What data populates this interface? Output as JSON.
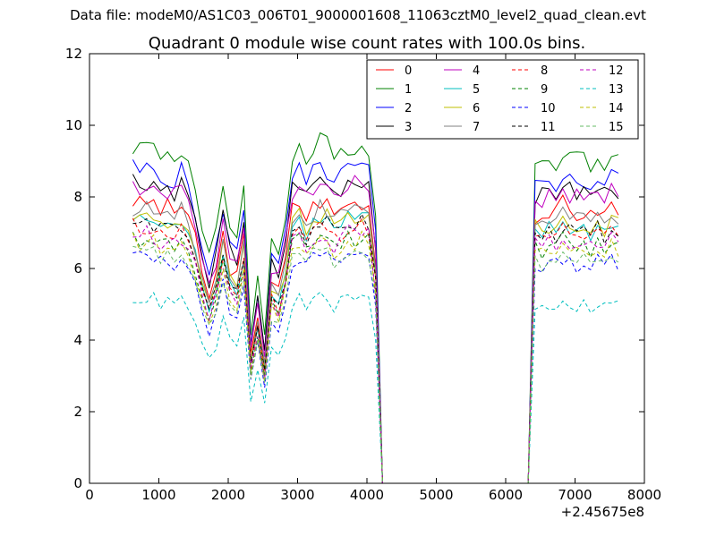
{
  "figure": {
    "suptitle": "Data file: modeM0/AS1C03_006T01_9000001608_11063cztM0_level2_quad_clean.evt"
  },
  "chart_data": {
    "type": "line",
    "title": "Quadrant 0 module wise count rates with 100.0s bins.",
    "xlabel": "",
    "ylabel": "",
    "xlim": [
      0,
      8000
    ],
    "ylim": [
      0,
      12
    ],
    "xticks": [
      0,
      1000,
      2000,
      3000,
      4000,
      5000,
      6000,
      7000,
      8000
    ],
    "yticks": [
      0,
      2,
      4,
      6,
      8,
      10,
      12
    ],
    "x_offset_label": "+2.45675e8",
    "legend_position": "top-right",
    "legend_columns": 4,
    "x": [
      625,
      725,
      825,
      925,
      1025,
      1125,
      1225,
      1325,
      1425,
      1525,
      1625,
      1725,
      1825,
      1925,
      2025,
      2125,
      2225,
      2325,
      2425,
      2525,
      2625,
      2725,
      2825,
      2925,
      3025,
      3125,
      3225,
      3325,
      3425,
      3525,
      3625,
      3725,
      3825,
      3925,
      4025,
      4125,
      4225,
      4325,
      4425,
      4525,
      4625,
      4725,
      4825,
      4925,
      5025,
      5125,
      5225,
      5325,
      5425,
      5525,
      5625,
      5725,
      5825,
      5925,
      6025,
      6125,
      6225,
      6325,
      6425,
      6525,
      6625,
      6725,
      6825,
      6925,
      7025,
      7125,
      7225,
      7325,
      7425,
      7525,
      7625
    ],
    "shape": [
      1.0,
      0.985,
      0.995,
      0.992,
      0.965,
      0.975,
      0.96,
      0.985,
      0.95,
      0.86,
      0.73,
      0.66,
      0.74,
      0.88,
      0.76,
      0.73,
      0.87,
      0.45,
      0.6,
      0.43,
      0.72,
      0.68,
      0.79,
      0.97,
      0.99,
      0.94,
      0.98,
      1.0,
      0.99,
      0.95,
      0.97,
      1.0,
      0.99,
      1.0,
      0.99,
      0.78,
      0.0,
      0.0,
      0.0,
      0.0,
      0.0,
      0.0,
      0.0,
      0.0,
      0.0,
      0.0,
      0.0,
      0.0,
      0.0,
      0.0,
      0.0,
      0.0,
      0.0,
      0.0,
      0.0,
      0.0,
      0.0,
      0.0,
      0.95,
      0.94,
      0.96,
      0.95,
      0.99,
      0.96,
      0.95,
      0.96,
      0.94,
      0.97,
      0.95,
      0.99,
      0.96
    ],
    "series": [
      {
        "name": "0",
        "color": "#ff0000",
        "dash": "solid",
        "level": 7.9
      },
      {
        "name": "1",
        "color": "#008000",
        "dash": "solid",
        "level": 9.5
      },
      {
        "name": "2",
        "color": "#0000ff",
        "dash": "solid",
        "level": 8.8
      },
      {
        "name": "3",
        "color": "#000000",
        "dash": "solid",
        "level": 8.5
      },
      {
        "name": "4",
        "color": "#bf00bf",
        "dash": "solid",
        "level": 8.4
      },
      {
        "name": "5",
        "color": "#00bfbf",
        "dash": "solid",
        "level": 7.4
      },
      {
        "name": "6",
        "color": "#bfbf00",
        "dash": "solid",
        "level": 7.5
      },
      {
        "name": "7",
        "color": "#808080",
        "dash": "solid",
        "level": 7.7
      },
      {
        "name": "8",
        "color": "#ff0000",
        "dash": "dashed",
        "level": 7.2
      },
      {
        "name": "9",
        "color": "#008000",
        "dash": "dashed",
        "level": 6.9
      },
      {
        "name": "10",
        "color": "#0000ff",
        "dash": "dashed",
        "level": 6.4
      },
      {
        "name": "11",
        "color": "#000000",
        "dash": "dashed",
        "level": 7.3
      },
      {
        "name": "12",
        "color": "#bf00bf",
        "dash": "dashed",
        "level": 7.0
      },
      {
        "name": "13",
        "color": "#00bfbf",
        "dash": "dashed",
        "level": 5.2
      },
      {
        "name": "14",
        "color": "#bfbf00",
        "dash": "dashed",
        "level": 6.8
      },
      {
        "name": "15",
        "color": "#66bb66",
        "dash": "dashed",
        "level": 6.5
      }
    ],
    "annotations": []
  }
}
